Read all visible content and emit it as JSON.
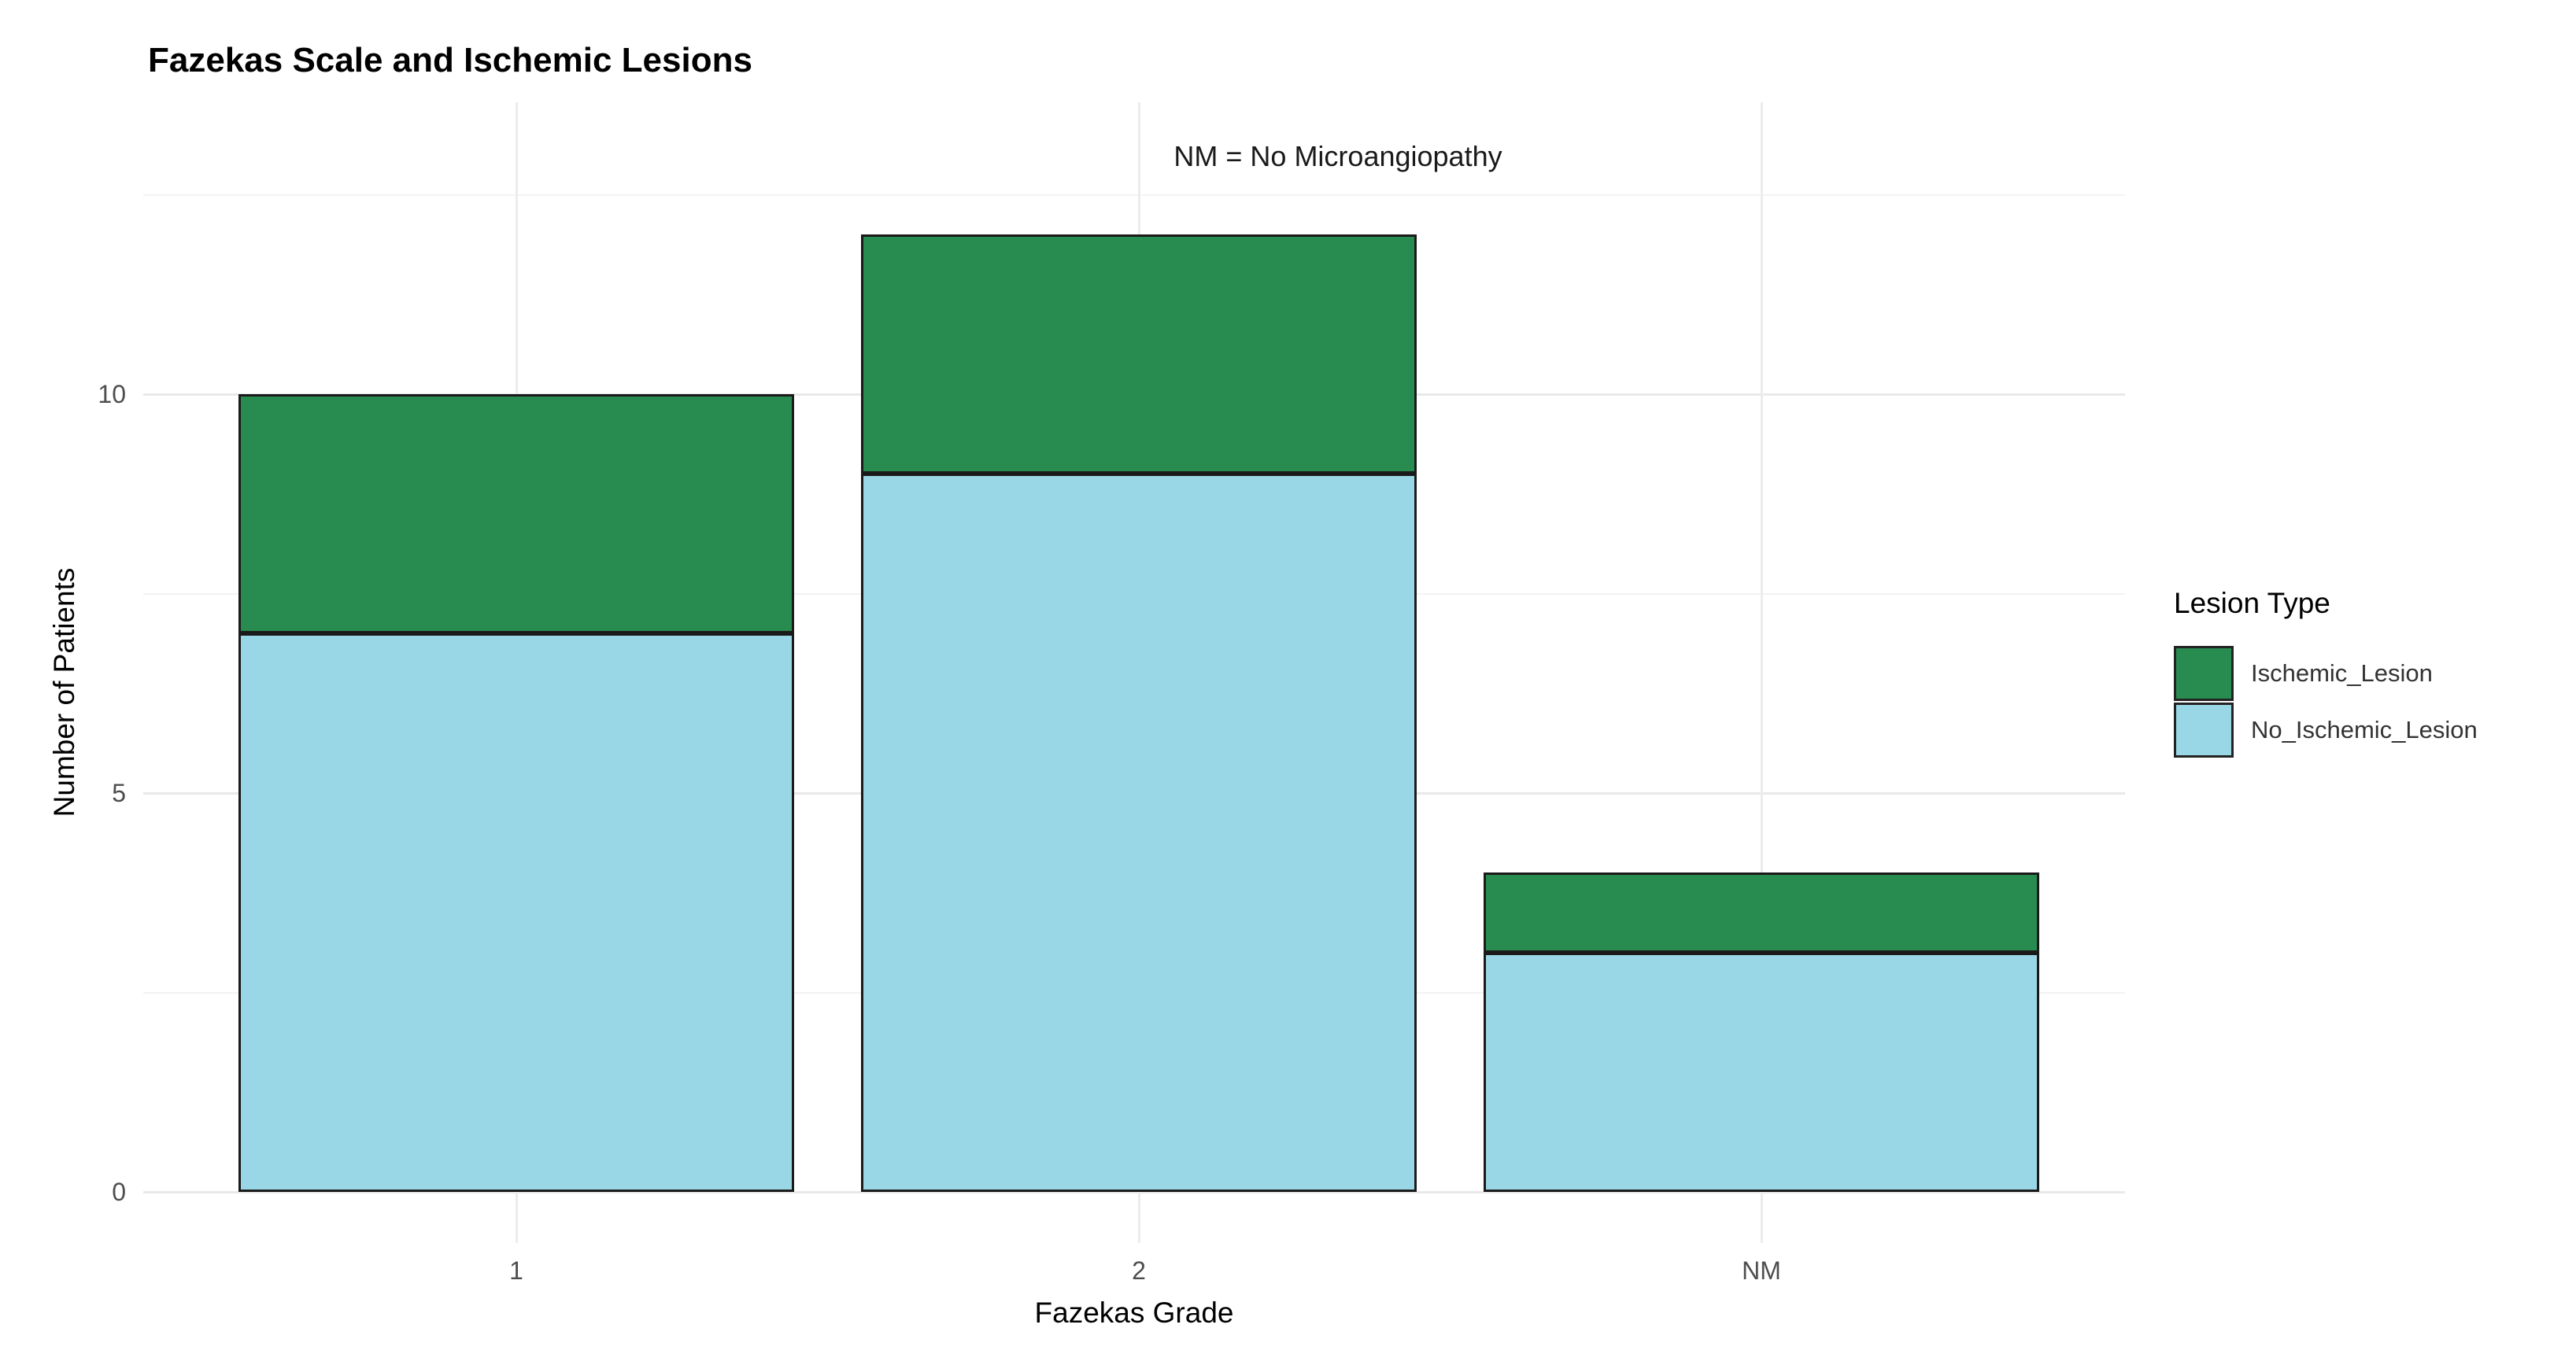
{
  "chart_data": {
    "type": "bar",
    "stacked": true,
    "title": "Fazekas Scale and Ischemic Lesions",
    "subtitle": "NM = No Microangiopathy",
    "xlabel": "Fazekas Grade",
    "ylabel": "Number of Patients",
    "legend_title": "Lesion Type",
    "legend_position": "right",
    "categories": [
      "1",
      "2",
      "NM"
    ],
    "series": [
      {
        "name": "No_Ischemic_Lesion",
        "color": "#9ad7e6",
        "values": [
          7,
          9,
          3
        ]
      },
      {
        "name": "Ischemic_Lesion",
        "color": "#288c50",
        "values": [
          3,
          3,
          1
        ]
      }
    ],
    "stack_totals": [
      10,
      12,
      4
    ],
    "y_ticks": [
      0,
      5,
      10
    ],
    "y_minor_ticks": [
      2.5,
      7.5,
      12.5
    ],
    "ylim": [
      -0.6,
      13.7
    ],
    "grid": true,
    "bar_outline_color": "#1a1a1a",
    "background": "#ffffff"
  },
  "colors": {
    "tick_label": "#4d4d4d",
    "axis_title": "#000000",
    "grid_major": "#e9e9e9",
    "grid_minor": "#f3f3f3",
    "grid_vertical": "#ececec"
  }
}
